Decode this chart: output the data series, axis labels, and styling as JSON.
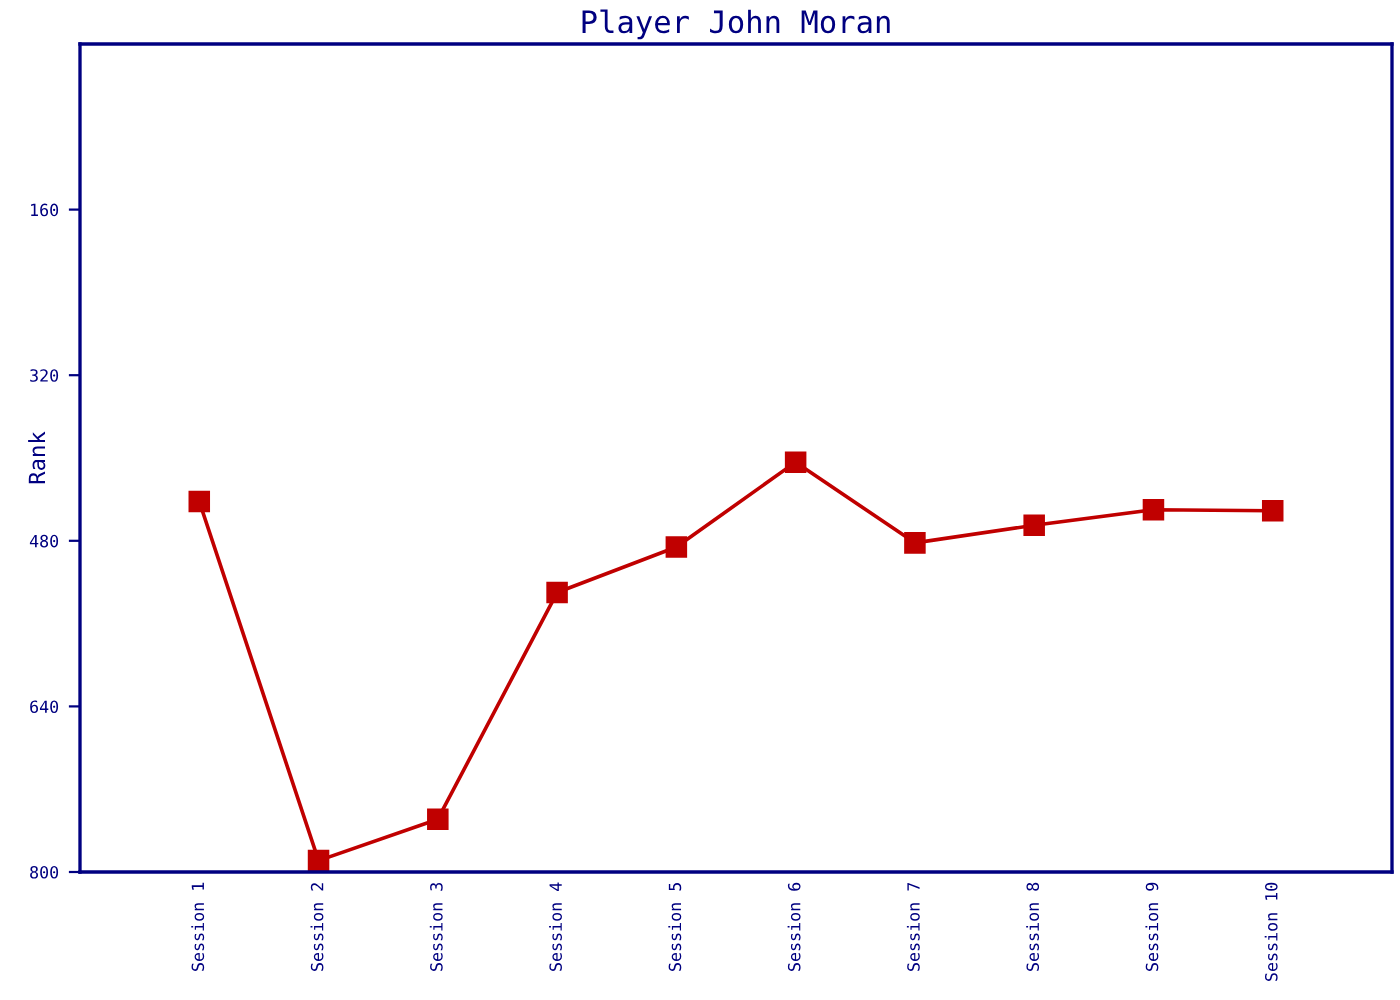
{
  "chart_data": {
    "type": "line",
    "title": "Player John Moran",
    "ylabel": "Rank",
    "categories": [
      "Session 1",
      "Session 2",
      "Session 3",
      "Session 4",
      "Session 5",
      "Session 6",
      "Session 7",
      "Session 8",
      "Session 9",
      "Session 10"
    ],
    "series": [
      {
        "color": "#c00000",
        "values": [
          442,
          789,
          749,
          530,
          486,
          404,
          482,
          465,
          450,
          451
        ]
      }
    ],
    "ylim": [
      800,
      0
    ],
    "yticks": [
      160,
      320,
      480,
      640,
      800
    ],
    "grid": false,
    "legend": false,
    "marker": "square",
    "line_style": "solid"
  }
}
